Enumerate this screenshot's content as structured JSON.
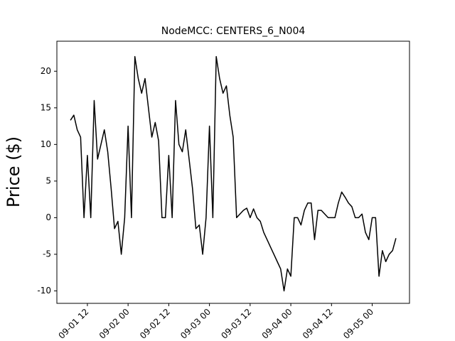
{
  "chart_data": {
    "type": "line",
    "title": "NodeMCC: CENTERS_6_N004",
    "y_label": "Price ($)",
    "x": [
      "09-01 07",
      "09-01 08",
      "09-01 09",
      "09-01 10",
      "09-01 11",
      "09-01 12",
      "09-01 13",
      "09-01 14",
      "09-01 15",
      "09-01 16",
      "09-01 17",
      "09-01 18",
      "09-01 19",
      "09-01 20",
      "09-01 21",
      "09-01 22",
      "09-01 23",
      "09-02 00",
      "09-02 01",
      "09-02 02",
      "09-02 03",
      "09-02 04",
      "09-02 05",
      "09-02 06",
      "09-02 07",
      "09-02 08",
      "09-02 09",
      "09-02 10",
      "09-02 11",
      "09-02 12",
      "09-02 13",
      "09-02 14",
      "09-02 15",
      "09-02 16",
      "09-02 17",
      "09-02 18",
      "09-02 19",
      "09-02 20",
      "09-02 21",
      "09-02 22",
      "09-02 23",
      "09-03 00",
      "09-03 01",
      "09-03 02",
      "09-03 03",
      "09-03 04",
      "09-03 05",
      "09-03 06",
      "09-03 07",
      "09-03 08",
      "09-03 09",
      "09-03 10",
      "09-03 11",
      "09-03 12",
      "09-03 13",
      "09-03 14",
      "09-03 15",
      "09-03 16",
      "09-03 17",
      "09-03 18",
      "09-03 19",
      "09-03 20",
      "09-03 21",
      "09-03 22",
      "09-03 23",
      "09-04 00",
      "09-04 01",
      "09-04 02",
      "09-04 03",
      "09-04 04",
      "09-04 05",
      "09-04 06",
      "09-04 07",
      "09-04 08",
      "09-04 09",
      "09-04 10",
      "09-04 11",
      "09-04 12",
      "09-04 13",
      "09-04 14",
      "09-04 15",
      "09-04 16",
      "09-04 17",
      "09-04 18",
      "09-04 19",
      "09-04 20",
      "09-04 21",
      "09-04 22",
      "09-04 23",
      "09-05 00",
      "09-05 01",
      "09-05 02",
      "09-05 03",
      "09-05 04",
      "09-05 05",
      "09-05 06",
      "09-05 07"
    ],
    "series": [
      {
        "color": "#000000",
        "values": [
          13.3,
          14,
          12,
          11,
          0,
          8.5,
          0,
          16,
          8,
          10,
          12,
          9,
          4,
          -1.5,
          -0.5,
          -5,
          0,
          12.5,
          0,
          22,
          19,
          17,
          19,
          15,
          11,
          13,
          10.5,
          0,
          0,
          8.5,
          0,
          16,
          10,
          9,
          12,
          8,
          4,
          -1.5,
          -1,
          -5,
          0,
          12.5,
          0,
          22,
          19,
          17,
          18,
          14,
          11,
          0,
          0.5,
          1,
          1.3,
          0,
          1.2,
          0,
          -0.5,
          -2,
          -3,
          -4,
          -5,
          -6,
          -7,
          -10,
          -7,
          -8,
          0,
          0,
          -1,
          1,
          2,
          2,
          -3,
          1,
          1,
          0.5,
          0,
          0,
          0,
          2,
          3.5,
          2.8,
          2,
          1.5,
          0,
          0,
          0.5,
          -2,
          -3,
          0,
          0,
          -8,
          -4.5,
          -6,
          -5,
          -4.5,
          -2.8
        ]
      }
    ],
    "xlim": [
      "09-01 03",
      "09-05 11"
    ],
    "xticks": [
      "09-01 12",
      "09-02 00",
      "09-02 12",
      "09-03 00",
      "09-03 12",
      "09-04 00",
      "09-04 12",
      "09-05 00"
    ],
    "ylim": [
      -11.7,
      24.1
    ],
    "yticks": [
      -10,
      -5,
      0,
      5,
      10,
      15,
      20
    ],
    "grid": false
  }
}
